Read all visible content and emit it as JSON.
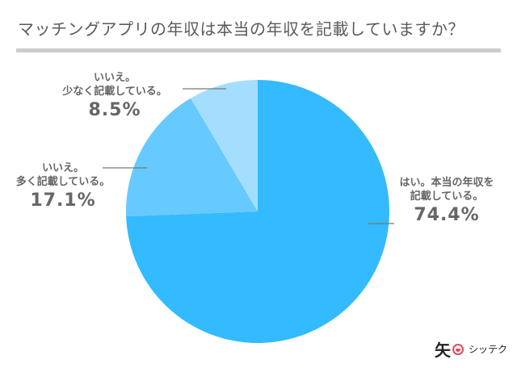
{
  "title": "マッチングアプリの年収は本当の年収を記載していますか？",
  "chart_data": {
    "type": "pie",
    "title": "マッチングアプリの年収は本当の年収を記載していますか？",
    "categories": [
      "はい。本当の年収を記載している。",
      "いいえ。多く記載している。",
      "いいえ。少なく記載している。"
    ],
    "values": [
      74.4,
      17.1,
      8.5
    ],
    "colors": [
      "#33baff",
      "#66c9ff",
      "#a3deff"
    ],
    "start_angle": "top",
    "direction": "clockwise",
    "legend": "none (callout labels)"
  },
  "labels": [
    {
      "line1": "はい。本当の年収を",
      "line2": "記載している。",
      "pct": "74.4%"
    },
    {
      "line1": "いいえ。",
      "line2": "多く記載している。",
      "pct": "17.1%"
    },
    {
      "line1": "いいえ。",
      "line2": "少なく記載している。",
      "pct": "8.5%"
    }
  ],
  "logo": {
    "kanji": "矢",
    "brand": "シッテク"
  }
}
